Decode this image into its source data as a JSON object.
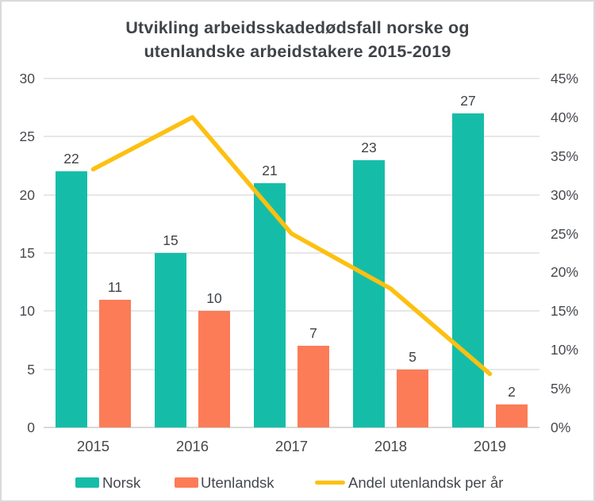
{
  "title_lines": [
    "Utvikling arbeidsskadedødsfall norske og",
    "utenlandske arbeidstakere 2015-2019"
  ],
  "chart_data": {
    "type": "bar+line combo",
    "title": "Utvikling arbeidsskadedødsfall norske og utenlandske arbeidstakere 2015-2019",
    "categories": [
      "2015",
      "2016",
      "2017",
      "2018",
      "2019"
    ],
    "series": [
      {
        "name": "Norsk",
        "type": "bar",
        "axis": "left",
        "color": "#15bda8",
        "values": [
          22,
          15,
          21,
          23,
          27
        ]
      },
      {
        "name": "Utenlandsk",
        "type": "bar",
        "axis": "left",
        "color": "#fc7c58",
        "values": [
          11,
          10,
          7,
          5,
          2
        ]
      },
      {
        "name": "Andel utenlandsk per år",
        "type": "line",
        "axis": "right",
        "color": "#fdc011",
        "values_percent": [
          33.3,
          40,
          25,
          17.9,
          6.9
        ]
      }
    ],
    "left_axis": {
      "min": 0,
      "max": 30,
      "step": 5,
      "tick_labels": [
        "0",
        "5",
        "10",
        "15",
        "20",
        "25",
        "30"
      ]
    },
    "right_axis": {
      "min": 0,
      "max": 45,
      "step": 5,
      "tick_labels": [
        "0%",
        "5%",
        "10%",
        "15%",
        "20%",
        "25%",
        "30%",
        "35%",
        "40%",
        "45%"
      ]
    },
    "grid": true,
    "legend_position": "bottom",
    "colors": {
      "norsk_bar": "#15bda8",
      "utenlandsk_bar": "#fc7c58",
      "andel_line": "#fdc011",
      "text": "#45484c",
      "gridline": "#e7e7e9",
      "border": "#d9d9de"
    }
  }
}
